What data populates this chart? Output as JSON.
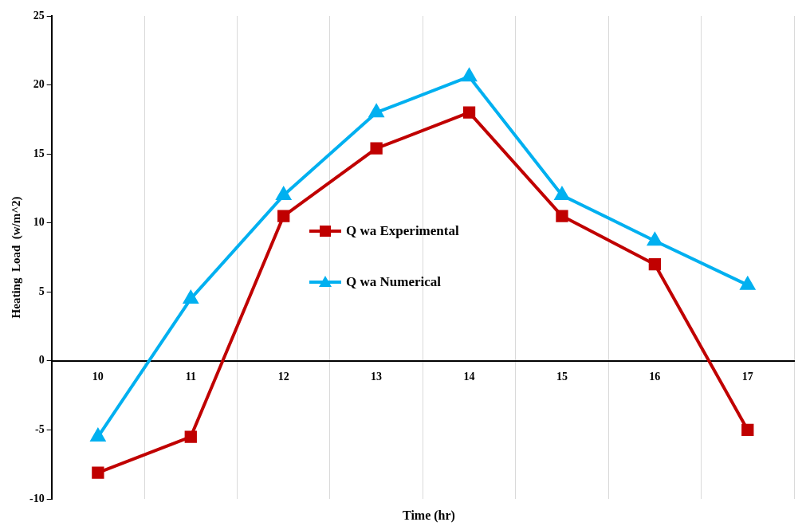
{
  "chart_data": {
    "type": "line",
    "xlabel": "Time (hr)",
    "ylabel": "Heating  Load  (w/m^2)",
    "categories": [
      "10",
      "11",
      "12",
      "13",
      "14",
      "15",
      "16",
      "17"
    ],
    "series": [
      {
        "name": "Q wa Experimental",
        "color": "#c00000",
        "marker": "square",
        "values": [
          -8.1,
          -5.5,
          10.5,
          15.4,
          18,
          10.5,
          7,
          -5
        ]
      },
      {
        "name": "Q wa Numerical",
        "color": "#00b0f0",
        "marker": "triangle",
        "values": [
          -5.5,
          4.5,
          12,
          18,
          20.6,
          12,
          8.7,
          5.5
        ]
      }
    ],
    "ylim": [
      -10,
      25
    ],
    "yticks": [
      -10,
      -5,
      0,
      5,
      10,
      15,
      20,
      25
    ],
    "grid": "x",
    "legend": "center",
    "line_style": "solid"
  }
}
